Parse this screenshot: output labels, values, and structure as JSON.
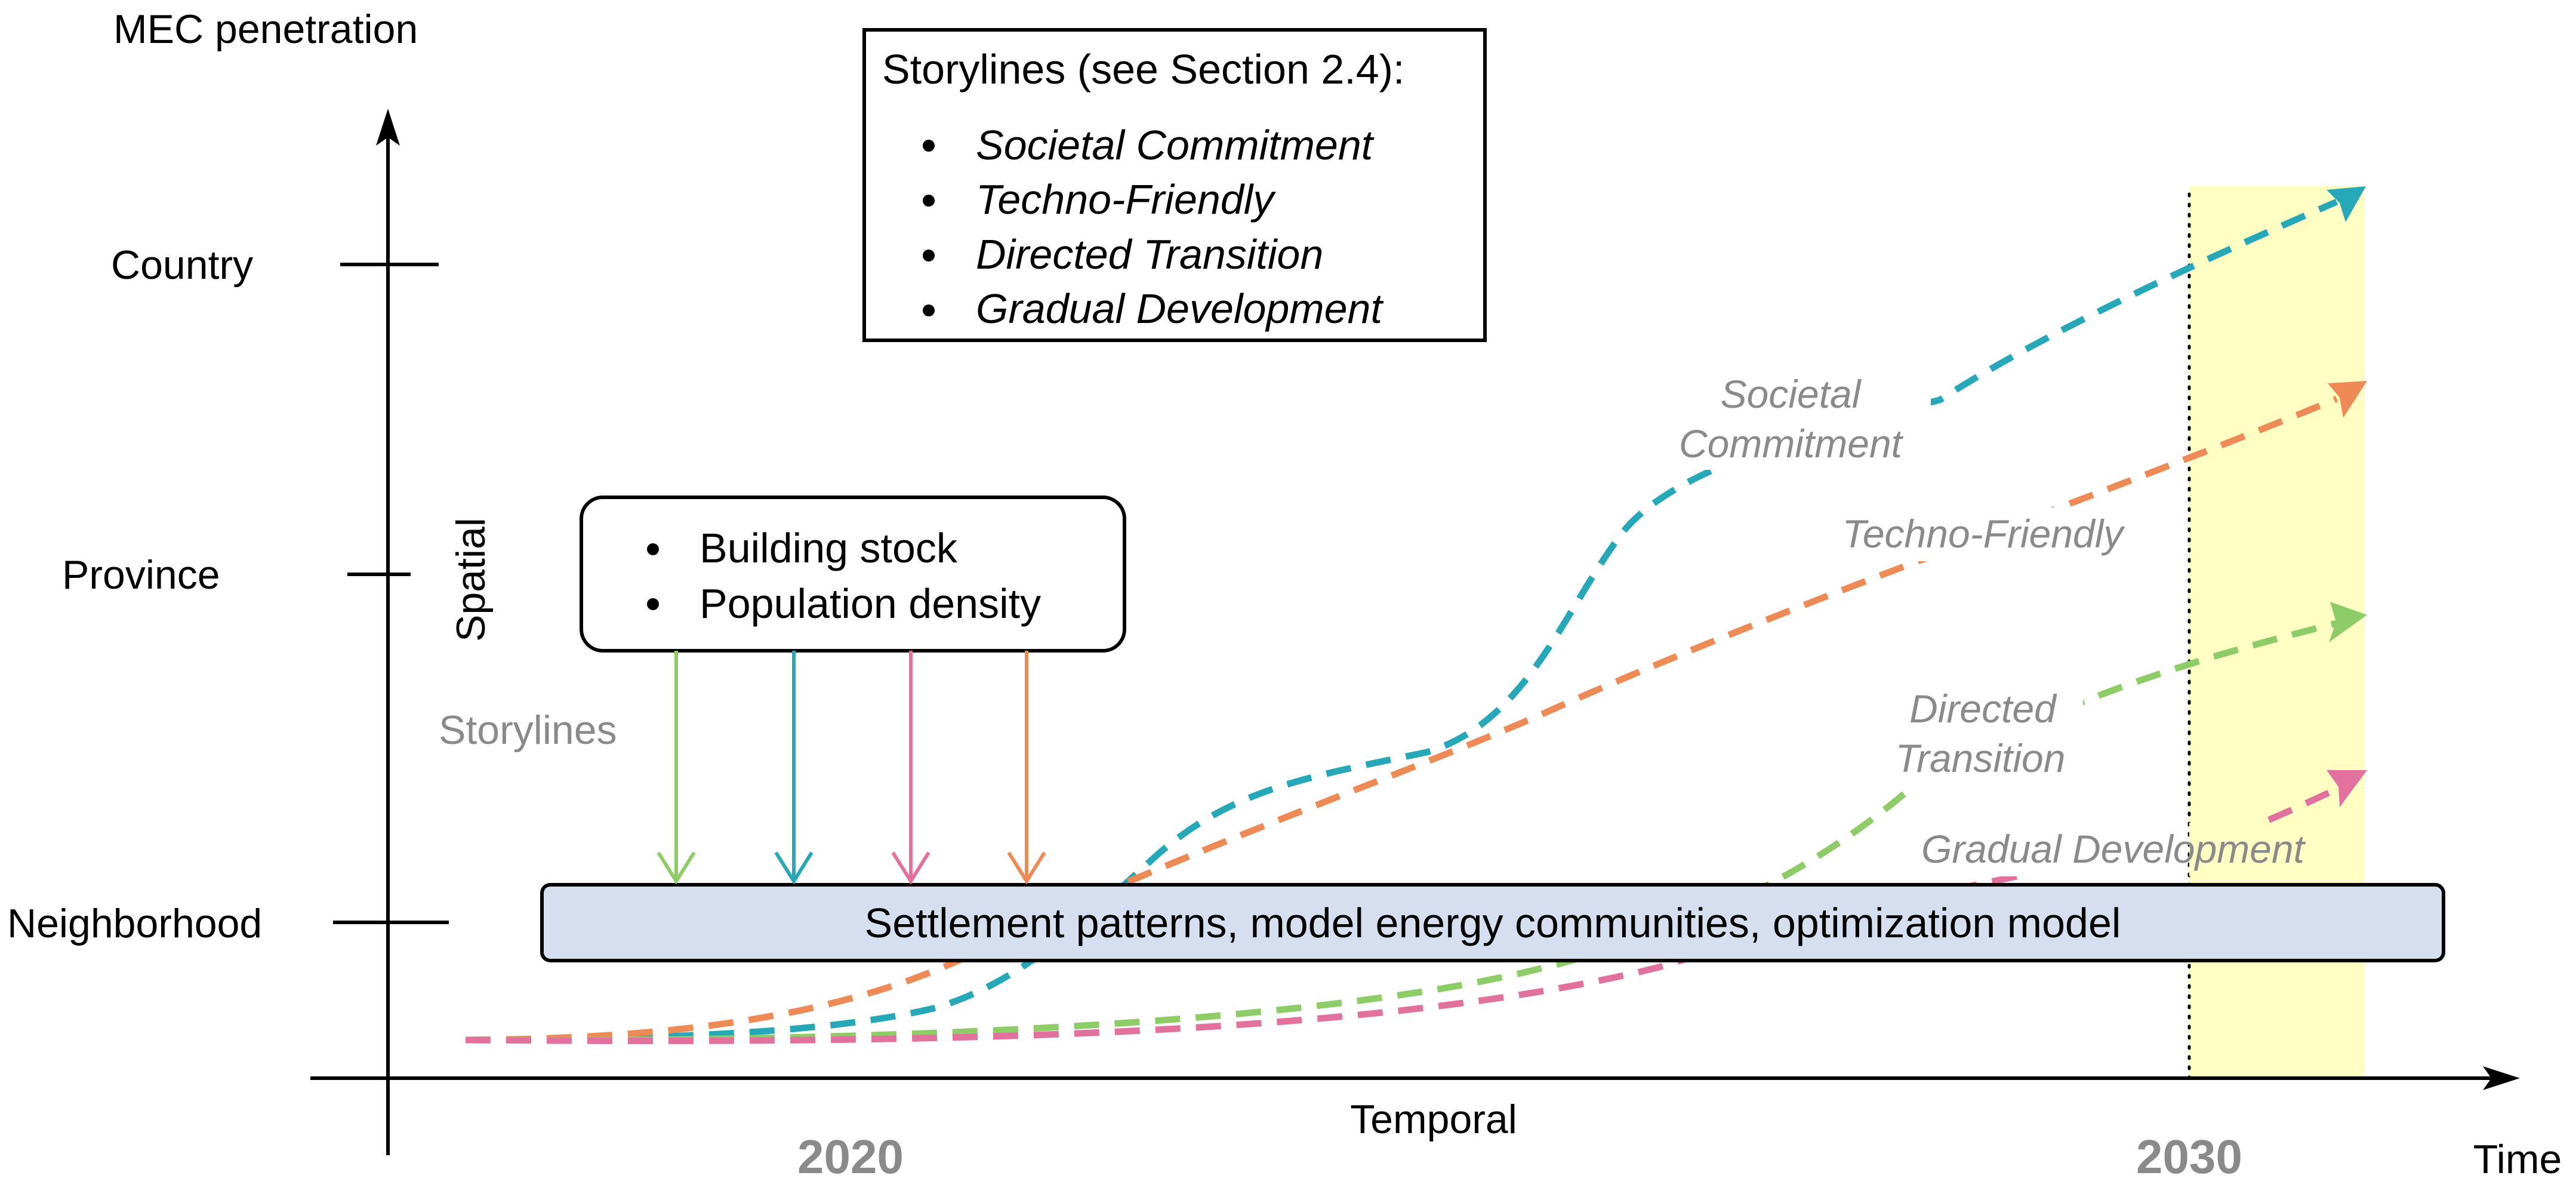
{
  "axes": {
    "y_label": "MEC penetration",
    "x_label": "Time",
    "spatial_label": "Spatial",
    "temporal_label": "Temporal",
    "y_levels": [
      "Country",
      "Province",
      "Neighborhood"
    ],
    "year_start": "2020",
    "year_end": "2030"
  },
  "storylines_box": {
    "title": "Storylines (see Section 2.4):",
    "items": [
      "Societal Commitment",
      "Techno-Friendly",
      "Directed Transition",
      "Gradual Development"
    ]
  },
  "spatial_box": {
    "items": [
      "Building stock",
      "Population density"
    ]
  },
  "storylines_label": "Storylines",
  "bar_text": "Settlement patterns, model energy communities, optimization model",
  "curve_labels": {
    "societal_1": "Societal",
    "societal_2": "Commitment",
    "techno": "Techno-Friendly",
    "directed_1": "Directed",
    "directed_2": "Transition",
    "gradual": "Gradual Development"
  },
  "colors": {
    "societal": "#26a8b8",
    "techno": "#ee8a55",
    "directed": "#8dcc66",
    "gradual": "#e2719e",
    "highlight": "#ffffc4",
    "bar_fill": "#d5dfef",
    "label_gray": "#8a8a8a"
  }
}
